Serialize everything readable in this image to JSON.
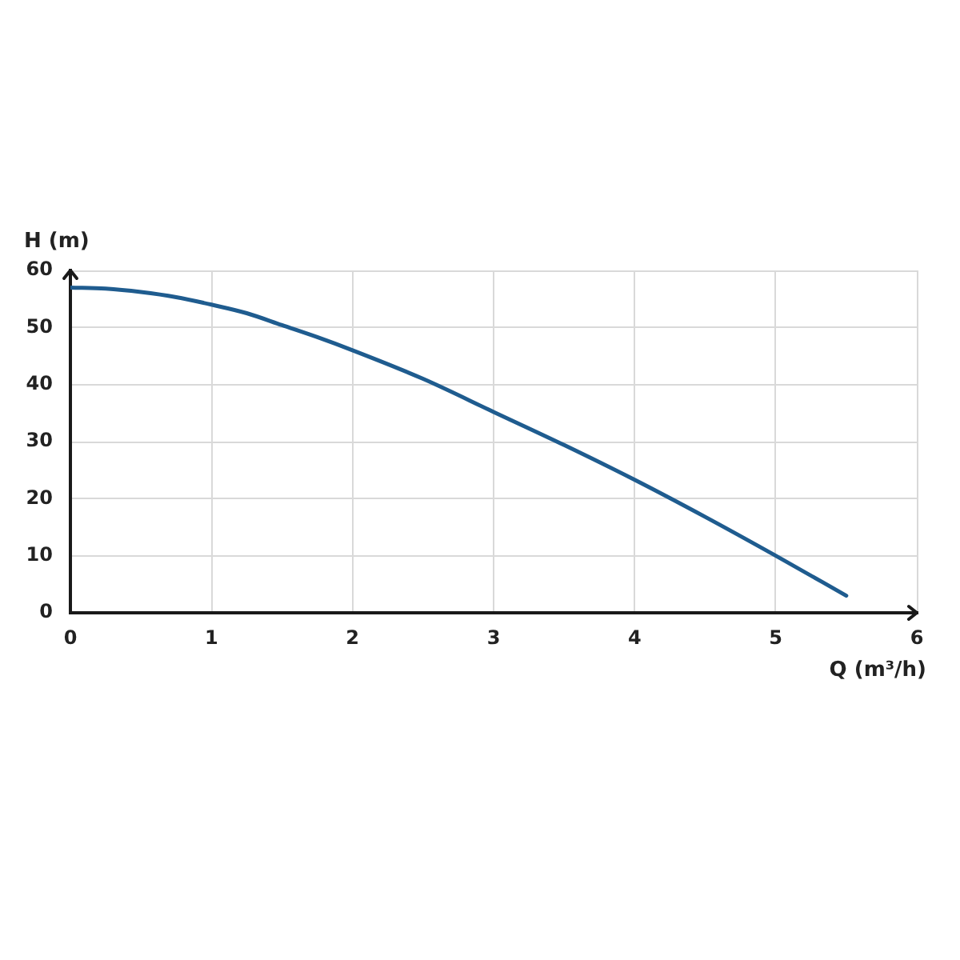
{
  "chart_data": {
    "type": "line",
    "xlabel": "Q (m³/h)",
    "ylabel": "H (m)",
    "x": [
      0,
      0.25,
      0.5,
      0.75,
      1,
      1.25,
      1.5,
      1.75,
      2,
      2.5,
      3,
      3.5,
      4,
      4.5,
      5,
      5.5
    ],
    "series": [
      {
        "color": "#1f5c8f",
        "values": [
          57,
          56.8,
          56.2,
          55.3,
          54,
          52.5,
          50.4,
          48.3,
          46,
          41,
          35.2,
          29.4,
          23.3,
          16.8,
          10,
          3
        ]
      }
    ],
    "xlim": [
      0,
      6
    ],
    "xticks": [
      0,
      1,
      2,
      3,
      4,
      5,
      6
    ],
    "ylim": [
      0,
      60
    ],
    "yticks": [
      0,
      10,
      20,
      30,
      40,
      50,
      60
    ],
    "grid": true,
    "marker": "none"
  }
}
